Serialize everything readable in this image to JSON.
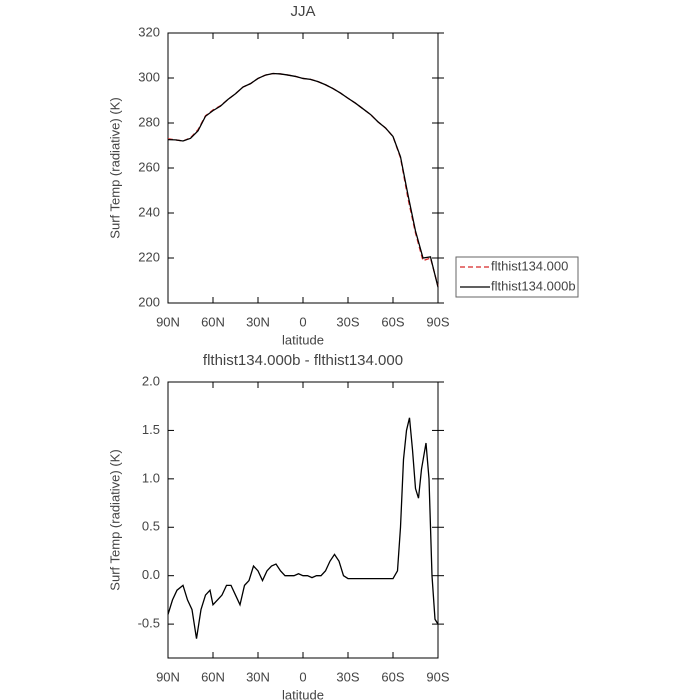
{
  "chart_data": [
    {
      "type": "line",
      "title": "JJA",
      "x_label": "latitude",
      "y_label": "Surf Temp (radiative) (K)",
      "x": [
        90,
        85,
        80,
        75,
        70,
        65,
        60,
        55,
        50,
        45,
        40,
        35,
        30,
        25,
        20,
        15,
        10,
        5,
        0,
        -5,
        -10,
        -15,
        -20,
        -25,
        -30,
        -35,
        -40,
        -45,
        -50,
        -55,
        -60,
        -65,
        -70,
        -75,
        -80,
        -85,
        -90
      ],
      "series": [
        {
          "name": "flthist134.000",
          "color": "#d62728",
          "dash": true,
          "values": [
            273,
            272.5,
            272,
            273.4,
            277,
            283.2,
            285.8,
            287.7,
            290.5,
            293,
            296,
            297.5,
            299.8,
            301.3,
            302,
            301.8,
            301.3,
            300.7,
            299.8,
            299.4,
            298.4,
            297,
            295.3,
            293.3,
            291,
            288.8,
            286.3,
            283.8,
            280.5,
            277.8,
            274,
            264.5,
            246.4,
            231.1,
            218.8,
            220,
            207.5
          ]
        },
        {
          "name": "flthist134.000b",
          "color": "#000000",
          "dash": false,
          "values": [
            272.6,
            272.5,
            272,
            273.2,
            276.5,
            283,
            285.5,
            287.5,
            290.5,
            293,
            296,
            297.5,
            299.8,
            301.3,
            302,
            301.8,
            301.3,
            300.7,
            299.8,
            299.4,
            298.4,
            297,
            295.3,
            293.3,
            291,
            288.8,
            286.3,
            283.8,
            280.5,
            277.8,
            274,
            265,
            248,
            232,
            220,
            220.5,
            207
          ]
        }
      ],
      "xlim": [
        90,
        -90
      ],
      "xticks": [
        {
          "value": 90,
          "label": "90N"
        },
        {
          "value": 60,
          "label": "60N"
        },
        {
          "value": 30,
          "label": "30N"
        },
        0,
        {
          "value": -30,
          "label": "30S"
        },
        {
          "value": -60,
          "label": "60S"
        },
        {
          "value": -90,
          "label": "90S"
        }
      ],
      "ylim": [
        200,
        320
      ],
      "yticks": [
        200,
        220,
        240,
        260,
        280,
        300,
        320
      ],
      "legend": "right"
    },
    {
      "type": "line",
      "title": "flthist134.000b - flthist134.000",
      "x_label": "latitude",
      "y_label": "Surf Temp (radiative) (K)",
      "x": [
        90,
        87,
        84,
        80,
        77,
        74,
        71,
        68,
        65,
        62,
        60,
        57,
        54,
        51,
        48,
        45,
        42,
        39,
        36,
        33,
        30,
        27,
        24,
        21,
        18,
        15,
        12,
        9,
        6,
        3,
        0,
        -3,
        -6,
        -9,
        -12,
        -15,
        -18,
        -21,
        -24,
        -27,
        -30,
        -35,
        -40,
        -45,
        -50,
        -55,
        -60,
        -63,
        -65,
        -67,
        -69,
        -71,
        -73,
        -75,
        -77,
        -79,
        -82,
        -84,
        -86,
        -88,
        -90
      ],
      "series": [
        {
          "color": "#000000",
          "dash": false,
          "values": [
            -0.4,
            -0.25,
            -0.15,
            -0.1,
            -0.25,
            -0.35,
            -0.65,
            -0.35,
            -0.2,
            -0.15,
            -0.3,
            -0.25,
            -0.2,
            -0.1,
            -0.1,
            -0.2,
            -0.3,
            -0.1,
            -0.05,
            0.1,
            0.05,
            -0.05,
            0.05,
            0.1,
            0.12,
            0.05,
            0,
            0,
            0,
            0.02,
            0,
            0,
            -0.02,
            0,
            0,
            0.05,
            0.15,
            0.22,
            0.15,
            0,
            -0.03,
            -0.03,
            -0.03,
            -0.03,
            -0.03,
            -0.03,
            -0.03,
            0.05,
            0.5,
            1.2,
            1.5,
            1.63,
            1.3,
            0.9,
            0.8,
            1.1,
            1.37,
            1.0,
            0,
            -0.45,
            -0.5
          ]
        }
      ],
      "xlim": [
        90,
        -90
      ],
      "xticks": [
        {
          "value": 90,
          "label": "90N"
        },
        {
          "value": 60,
          "label": "60N"
        },
        {
          "value": 30,
          "label": "30N"
        },
        0,
        {
          "value": -30,
          "label": "30S"
        },
        {
          "value": -60,
          "label": "60S"
        },
        {
          "value": -90,
          "label": "90S"
        }
      ],
      "ylim": [
        -0.85,
        2.0
      ],
      "yticks": [
        -0.5,
        {
          "value": 0,
          "label": "0.0"
        },
        0.5,
        {
          "value": 1,
          "label": "1.0"
        },
        1.5,
        {
          "value": 2,
          "label": "2.0"
        }
      ]
    }
  ]
}
